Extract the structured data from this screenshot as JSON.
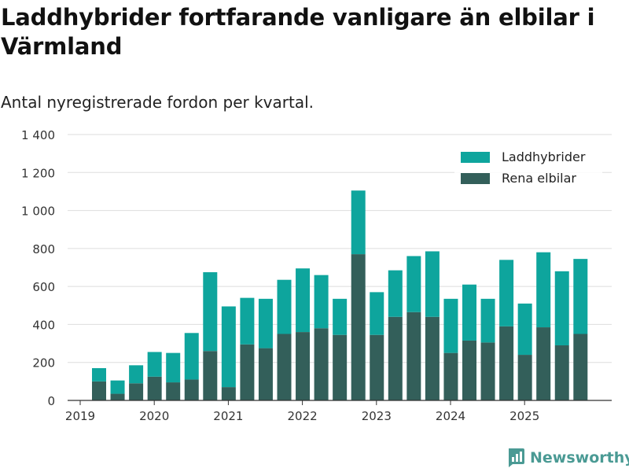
{
  "chart_data": {
    "type": "bar",
    "stacked": true,
    "title": "Laddhybrider fortfarande vanligare än elbilar i Värmland",
    "subtitle": "Antal nyregistrerade fordon per kvartal.",
    "ylim": [
      0,
      1400
    ],
    "yticks": [
      0,
      200,
      400,
      600,
      800,
      1000,
      1200,
      1400
    ],
    "ytick_labels": [
      "0",
      "200",
      "400",
      "600",
      "800",
      "1 000",
      "1 200",
      "1 400"
    ],
    "xtick_labels": [
      "2019",
      "2020",
      "2021",
      "2022",
      "2023",
      "2024",
      "2025"
    ],
    "categories": [
      "2019 Q2",
      "2019 Q3",
      "2019 Q4",
      "2020 Q1",
      "2020 Q2",
      "2020 Q3",
      "2020 Q4",
      "2021 Q1",
      "2021 Q2",
      "2021 Q3",
      "2021 Q4",
      "2022 Q1",
      "2022 Q2",
      "2022 Q3",
      "2022 Q4",
      "2023 Q1",
      "2023 Q2",
      "2023 Q3",
      "2023 Q4",
      "2024 Q1",
      "2024 Q2",
      "2024 Q3",
      "2024 Q4",
      "2025 Q1",
      "2025 Q2",
      "2025 Q3",
      "2025 Q4"
    ],
    "series": [
      {
        "name": "Rena elbilar",
        "color": "#335f5a",
        "values": [
          100,
          35,
          90,
          125,
          95,
          110,
          260,
          70,
          295,
          275,
          350,
          360,
          380,
          345,
          770,
          345,
          440,
          465,
          440,
          250,
          315,
          305,
          390,
          240,
          385,
          290,
          350
        ]
      },
      {
        "name": "Laddhybrider",
        "color": "#0ea59d",
        "values": [
          70,
          70,
          95,
          130,
          155,
          245,
          415,
          425,
          245,
          260,
          285,
          335,
          280,
          190,
          335,
          225,
          245,
          295,
          345,
          285,
          295,
          230,
          350,
          270,
          395,
          390,
          395
        ]
      }
    ],
    "legend": [
      "Laddhybrider",
      "Rena elbilar"
    ],
    "legend_position": "top-right"
  },
  "brand": {
    "name": "Newsworthy",
    "color": "#4a9a94"
  }
}
